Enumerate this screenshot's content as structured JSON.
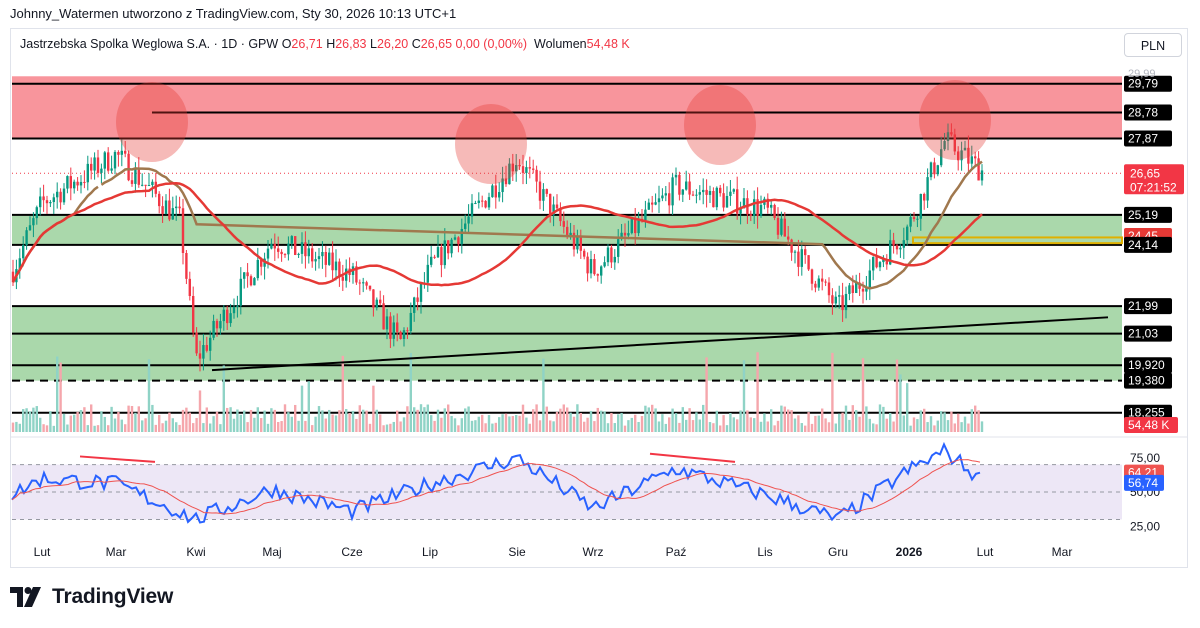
{
  "header": {
    "attribution": "Johnny_Watermen utworzono z TradingView.com, Sty 30, 2026 10:13 UTC+1"
  },
  "legend": {
    "symbol": "Jastrzebska Spolka Weglowa S.A. · 1D · GPW",
    "o_label": "O",
    "o_value": "26,71",
    "h_label": "H",
    "h_value": "26,83",
    "l_label": "L",
    "l_value": "26,20",
    "c_label": "C",
    "c_value": "26,65",
    "change": "0,00 (0,00%)",
    "volume_label": "Wolumen",
    "volume_value": "54,48 K"
  },
  "currency": "PLN",
  "brand": {
    "name": "TradingView"
  },
  "colors": {
    "up": "#089981",
    "down": "#f23645",
    "red_zone": "#f7838b",
    "green_zone": "#a5d6a7",
    "ma_brown": "#a0784e",
    "ma_red": "#e53935",
    "rsi_line": "#2962ff",
    "rsi_ma": "#ef5350",
    "rsi_band": "#ede7f6",
    "yellow": "#e0b000",
    "black": "#000000"
  },
  "chart_data": [
    {
      "type": "candlestick",
      "title": "Jastrzebska Spolka Weglowa S.A. · 1D · GPW",
      "x_labels": [
        "Lut",
        "Mar",
        "Kwi",
        "Maj",
        "Cze",
        "Lip",
        "Sie",
        "Wrz",
        "Paź",
        "Lis",
        "Gru",
        "2026",
        "Lut",
        "Mar"
      ],
      "price_scale_labels": [
        "29,79",
        "28,78",
        "27,87",
        "25,19",
        "24,45",
        "24,14",
        "21,99",
        "21,03",
        "19,920",
        "19,380",
        "18,255"
      ],
      "partial_top_label": "29,99",
      "ylim": [
        18.0,
        30.2
      ],
      "last_price": {
        "value": "26,65",
        "countdown": "07:21:52"
      },
      "zones": [
        {
          "color": "red",
          "from": 27.87,
          "to": 30.05
        },
        {
          "color": "green",
          "from": 24.14,
          "to": 25.19
        },
        {
          "color": "green",
          "from": 19.38,
          "to": 21.99
        }
      ],
      "horizontal_levels": [
        {
          "value": 29.79,
          "style": "solid"
        },
        {
          "value": 28.78,
          "style": "solid"
        },
        {
          "value": 27.87,
          "style": "solid"
        },
        {
          "value": 25.19,
          "style": "solid"
        },
        {
          "value": 24.14,
          "style": "solid"
        },
        {
          "value": 21.99,
          "style": "solid"
        },
        {
          "value": 21.03,
          "style": "solid"
        },
        {
          "value": 19.92,
          "style": "solid"
        },
        {
          "value": 19.38,
          "style": "dashed"
        },
        {
          "value": 18.255,
          "style": "solid"
        }
      ],
      "trendline": {
        "from": {
          "month": "Kwi",
          "price": 19.75
        },
        "to": {
          "month": "Mar",
          "price": 21.6
        }
      },
      "yellow_band": {
        "from": 24.2,
        "to": 24.4,
        "start_month": "Gru"
      },
      "highlighted_peaks": [
        "Mar",
        "Sie",
        "Paź",
        "Sty"
      ],
      "moving_averages": [
        {
          "color": "brown",
          "value_label": "24,45"
        },
        {
          "color": "red"
        }
      ],
      "volume_label": "54,48 K",
      "series_anchors": [
        {
          "month": "Sty",
          "price": 23.2
        },
        {
          "month": "Lut",
          "price": 25.6
        },
        {
          "month": "Mar",
          "price": 27.3
        },
        {
          "month": "Mar (end)",
          "price": 25.0
        },
        {
          "month": "Kwi",
          "price": 20.1
        },
        {
          "month": "Maj",
          "price": 24.3
        },
        {
          "month": "Cze",
          "price": 23.1
        },
        {
          "month": "Cze (end)",
          "price": 20.7
        },
        {
          "month": "Lip",
          "price": 23.3
        },
        {
          "month": "Sie",
          "price": 27.2
        },
        {
          "month": "Wrz",
          "price": 23.2
        },
        {
          "month": "Paź",
          "price": 26.2
        },
        {
          "month": "Lis",
          "price": 25.4
        },
        {
          "month": "Gru",
          "price": 21.9
        },
        {
          "month": "Sty (2026)",
          "price": 24.8
        },
        {
          "month": "Sty (peak)",
          "price": 27.8
        },
        {
          "month": "Sty (last)",
          "price": 26.65
        }
      ]
    },
    {
      "type": "line",
      "title": "RSI",
      "y_ticks": [
        "75,00",
        "50,00",
        "25,00"
      ],
      "band": [
        30,
        70
      ],
      "ylim": [
        15,
        88
      ],
      "current": {
        "rsi": "56,74",
        "rsi_ma": "64,21"
      },
      "series_anchors": [
        {
          "month": "Sty",
          "rsi": 48
        },
        {
          "month": "Lut",
          "rsi": 60
        },
        {
          "month": "Mar",
          "rsi": 56
        },
        {
          "month": "Kwi",
          "rsi": 30
        },
        {
          "month": "Maj",
          "rsi": 52
        },
        {
          "month": "Cze",
          "rsi": 36
        },
        {
          "month": "Lip",
          "rsi": 56
        },
        {
          "month": "Sie",
          "rsi": 75
        },
        {
          "month": "Wrz",
          "rsi": 38
        },
        {
          "month": "Paź",
          "rsi": 67
        },
        {
          "month": "Lis",
          "rsi": 48
        },
        {
          "month": "Gru",
          "rsi": 30
        },
        {
          "month": "Sty (2026)",
          "rsi": 66
        },
        {
          "month": "Sty (peak)",
          "rsi": 80
        },
        {
          "month": "Sty (last)",
          "rsi": 56.74
        }
      ]
    }
  ]
}
